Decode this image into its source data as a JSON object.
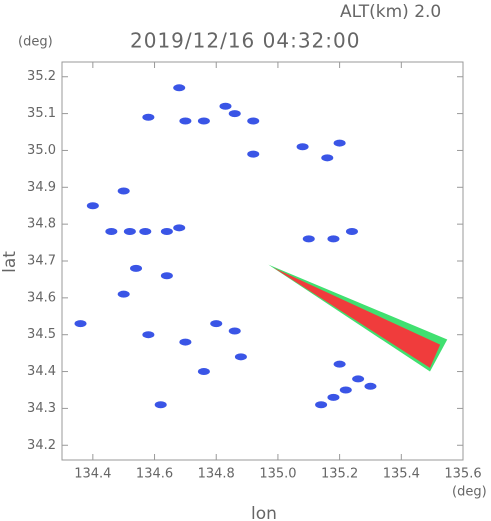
{
  "chart_data": {
    "type": "scatter",
    "title": "2019/12/16 04:32:00",
    "subtitle": "ALT(km) 2.0",
    "y_unit": "(deg)",
    "x_unit": "(deg)",
    "xlabel": "lon",
    "ylabel": "lat",
    "xlim": [
      134.3,
      135.6
    ],
    "ylim": [
      34.16,
      35.24
    ],
    "xticks": [
      134.4,
      134.6,
      134.8,
      {
        "value": 135,
        "label": "135.0"
      },
      135.2,
      135.4,
      135.6
    ],
    "yticks": [
      34.2,
      34.3,
      34.4,
      34.5,
      34.6,
      34.7,
      34.8,
      34.9,
      {
        "value": 35,
        "label": "35.0"
      },
      35.1,
      35.2
    ],
    "series": [
      {
        "shape": "blob",
        "color": "#3a55e6",
        "x": [
          134.36,
          134.46,
          134.52,
          134.57,
          134.64,
          134.68,
          134.5,
          134.58,
          134.68,
          134.7,
          134.76,
          134.83,
          134.86,
          134.92,
          135.08,
          135.16,
          135.2,
          134.92,
          135.18,
          135.24,
          134.54,
          134.64,
          134.7,
          134.8,
          134.86,
          134.88,
          134.76,
          134.62,
          134.58,
          135.18,
          135.22,
          135.26,
          135.3,
          135.2,
          135.14,
          134.4,
          134.5,
          135.1
        ],
        "y": [
          34.53,
          34.78,
          34.78,
          34.78,
          34.78,
          34.79,
          34.61,
          35.09,
          35.17,
          35.08,
          35.08,
          35.12,
          35.1,
          35.08,
          35.01,
          34.98,
          35.02,
          34.99,
          34.76,
          34.78,
          34.68,
          34.66,
          34.48,
          34.53,
          34.51,
          34.44,
          34.4,
          34.31,
          34.5,
          34.33,
          34.35,
          34.38,
          34.36,
          34.42,
          34.31,
          34.85,
          34.89,
          34.76
        ]
      },
      {
        "shape": "polygon",
        "color": "#40e070",
        "x": [
          134.969,
          135.549,
          135.493
        ],
        "y": [
          34.69,
          34.487,
          34.4
        ]
      },
      {
        "shape": "polygon",
        "color": "#f03c3c",
        "x": [
          134.985,
          135.526,
          135.493
        ],
        "y": [
          34.682,
          34.473,
          34.41
        ]
      }
    ]
  }
}
